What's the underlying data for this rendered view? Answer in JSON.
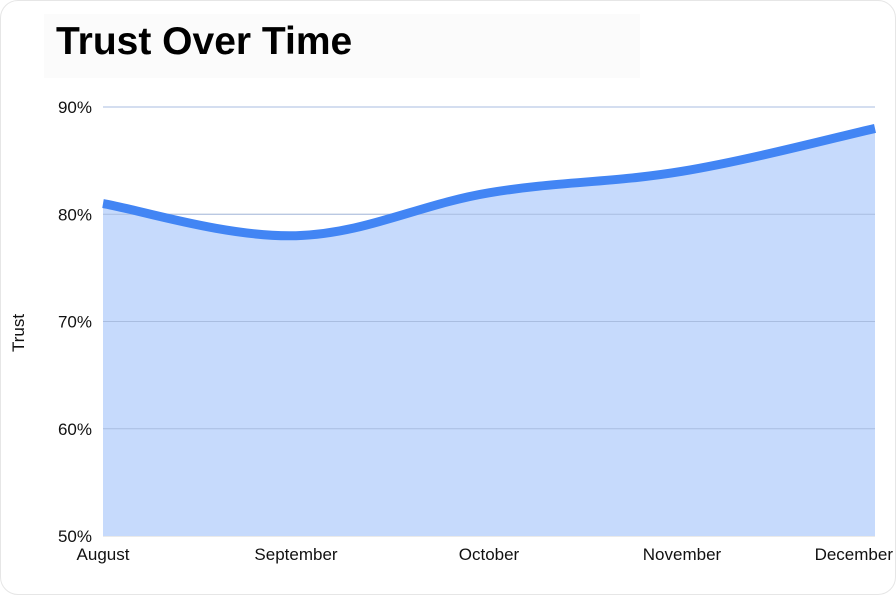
{
  "chart_data": {
    "type": "area",
    "title": "Trust Over Time",
    "xlabel": "",
    "ylabel": "Trust",
    "categories": [
      "August",
      "September",
      "October",
      "November",
      "December"
    ],
    "series": [
      {
        "values": [
          81,
          78,
          82,
          84,
          88
        ]
      }
    ],
    "ylim": [
      50,
      90
    ],
    "yticks": [
      "50%",
      "60%",
      "70%",
      "80%",
      "90%"
    ],
    "grid": true,
    "legend": "none",
    "colors": {
      "line": "#4285f4",
      "fill": "#c6dafc",
      "grid": "#d5d5d5"
    }
  }
}
